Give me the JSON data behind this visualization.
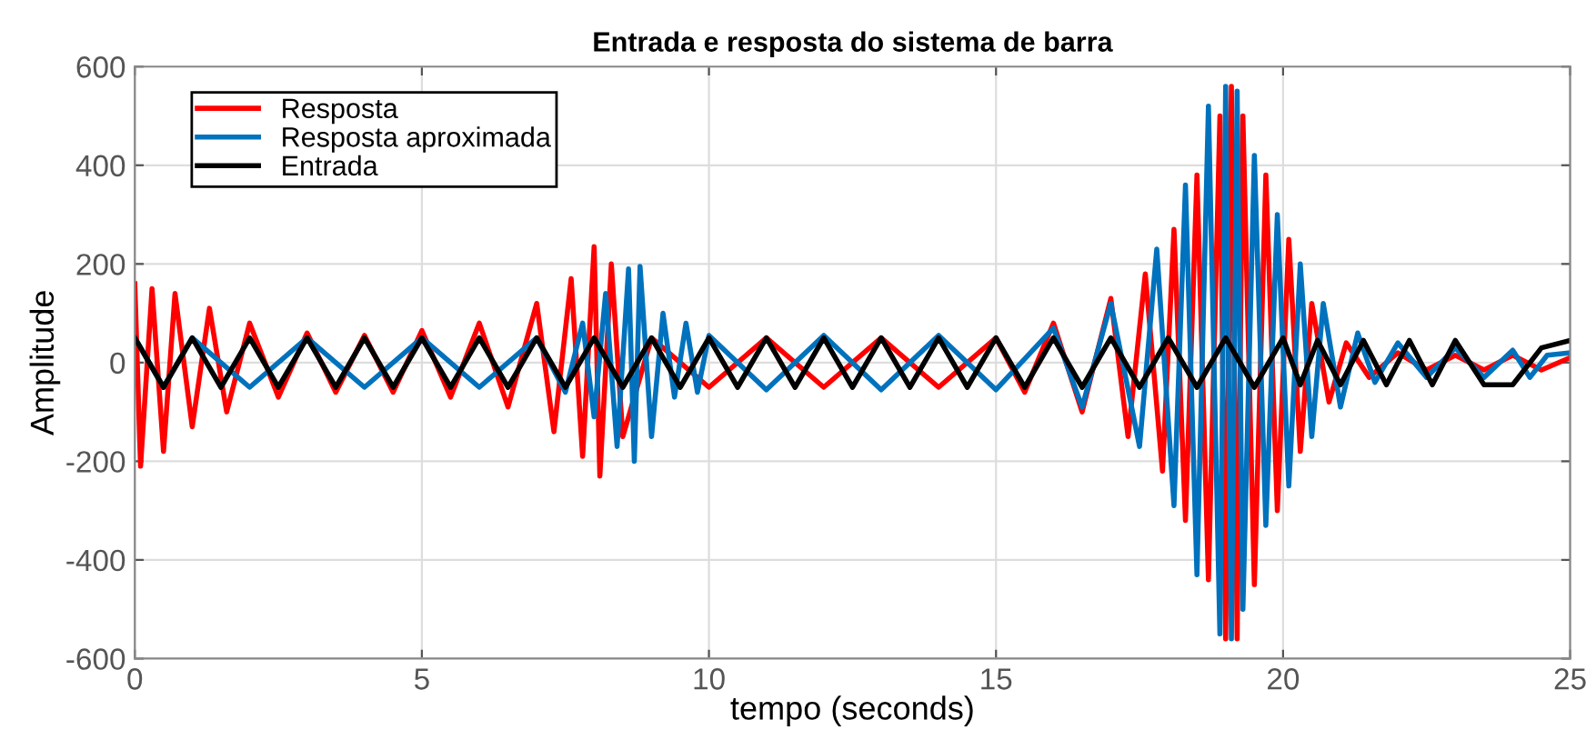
{
  "chart_data": {
    "type": "line",
    "title": "Entrada e resposta do sistema de barra",
    "xlabel": "tempo (seconds)",
    "ylabel": "Amplitude",
    "xlim": [
      0,
      25
    ],
    "ylim": [
      -600,
      600
    ],
    "xticks": [
      0,
      5,
      10,
      15,
      20,
      25
    ],
    "yticks": [
      -600,
      -400,
      -200,
      0,
      200,
      400,
      600
    ],
    "grid": true,
    "legend": "top left",
    "marker": "none",
    "line_style": "solid",
    "series": [
      {
        "name": "Resposta",
        "color": "#ff0000",
        "x": [
          0,
          0.1,
          0.3,
          0.5,
          0.7,
          1.0,
          1.3,
          1.6,
          2.0,
          2.5,
          3.0,
          3.5,
          4.0,
          4.5,
          5.0,
          5.5,
          6.0,
          6.5,
          7.0,
          7.3,
          7.6,
          7.8,
          8.0,
          8.1,
          8.3,
          8.5,
          9,
          10,
          11,
          12,
          13,
          14,
          15,
          15.5,
          16,
          16.5,
          17,
          17.3,
          17.6,
          17.9,
          18.1,
          18.3,
          18.5,
          18.7,
          18.9,
          19.0,
          19.1,
          19.2,
          19.3,
          19.5,
          19.7,
          19.9,
          20.1,
          20.3,
          20.5,
          20.8,
          21.1,
          21.5,
          22,
          22.5,
          23,
          23.5,
          24,
          24.5,
          25
        ],
        "values": [
          160,
          -210,
          150,
          -180,
          140,
          -130,
          110,
          -100,
          80,
          -70,
          60,
          -60,
          55,
          -60,
          65,
          -70,
          80,
          -90,
          120,
          -140,
          170,
          -190,
          235,
          -230,
          200,
          -150,
          50,
          -50,
          50,
          -50,
          50,
          -50,
          50,
          -60,
          80,
          -100,
          130,
          -150,
          180,
          -220,
          270,
          -320,
          380,
          -440,
          500,
          -560,
          560,
          -560,
          500,
          -450,
          380,
          -300,
          250,
          -180,
          120,
          -80,
          40,
          -30,
          20,
          -15,
          15,
          -15,
          15,
          -15,
          10
        ]
      },
      {
        "name": "Resposta aproximada",
        "color": "#0072bd",
        "x": [
          0,
          0.5,
          1,
          2,
          3,
          4,
          5,
          6,
          7,
          7.5,
          7.8,
          8.0,
          8.2,
          8.4,
          8.6,
          8.7,
          8.8,
          9.0,
          9.2,
          9.4,
          9.6,
          9.8,
          10,
          11,
          12,
          13,
          14,
          15,
          16,
          16.5,
          17,
          17.5,
          17.8,
          18.1,
          18.3,
          18.5,
          18.7,
          18.9,
          19.0,
          19.1,
          19.2,
          19.3,
          19.5,
          19.7,
          19.9,
          20.1,
          20.3,
          20.5,
          20.7,
          21.0,
          21.3,
          21.6,
          22,
          22.5,
          23,
          23.5,
          24,
          24.3,
          24.6,
          25
        ],
        "values": [
          50,
          -50,
          50,
          -50,
          50,
          -50,
          50,
          -50,
          50,
          -60,
          80,
          -110,
          140,
          -170,
          190,
          -200,
          195,
          -150,
          100,
          -70,
          80,
          -60,
          55,
          -55,
          55,
          -55,
          55,
          -55,
          70,
          -90,
          120,
          -170,
          230,
          -290,
          360,
          -430,
          520,
          -550,
          560,
          -560,
          550,
          -500,
          420,
          -330,
          300,
          -250,
          200,
          -150,
          120,
          -90,
          60,
          -40,
          40,
          -30,
          30,
          -30,
          25,
          -30,
          15,
          20
        ]
      },
      {
        "name": "Entrada",
        "color": "#000000",
        "x": [
          0,
          0.5,
          1,
          1.5,
          2,
          2.5,
          3,
          3.5,
          4,
          4.5,
          5,
          5.5,
          6,
          6.5,
          7,
          7.5,
          8,
          8.5,
          9,
          9.5,
          10,
          10.5,
          11,
          11.5,
          12,
          12.5,
          13,
          13.5,
          14,
          14.5,
          15,
          15.5,
          16,
          16.5,
          17,
          17.5,
          18,
          18.5,
          19,
          19.5,
          20,
          20.3,
          20.6,
          21.0,
          21.4,
          21.8,
          22.2,
          22.6,
          23.0,
          23.5,
          24.0,
          24.5,
          25
        ],
        "values": [
          50,
          -50,
          50,
          -50,
          50,
          -50,
          50,
          -50,
          50,
          -50,
          50,
          -50,
          50,
          -50,
          50,
          -50,
          50,
          -50,
          50,
          -50,
          50,
          -50,
          50,
          -50,
          50,
          -50,
          50,
          -50,
          50,
          -50,
          50,
          -50,
          50,
          -50,
          50,
          -50,
          50,
          -50,
          50,
          -50,
          50,
          -45,
          45,
          -45,
          45,
          -45,
          45,
          -45,
          45,
          -45,
          -45,
          30,
          45
        ]
      }
    ]
  }
}
